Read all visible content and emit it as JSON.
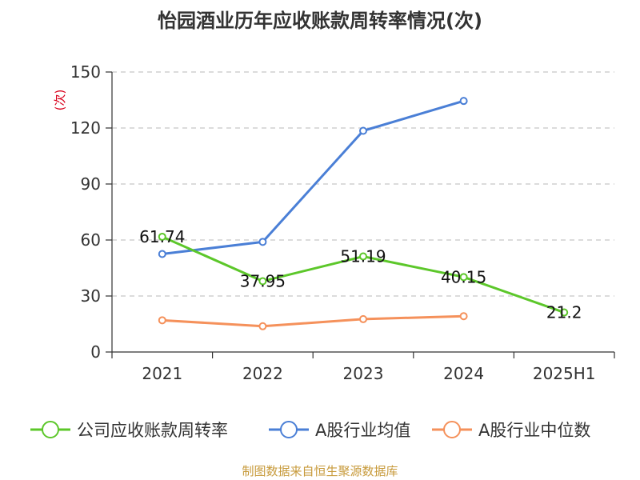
{
  "chart_data": {
    "type": "line",
    "title": "怡园酒业历年应收账款周转率情况(次)",
    "ylabel": "(次)",
    "ylabel_color": "#d9001b",
    "categories": [
      "2021",
      "2022",
      "2023",
      "2024",
      "2025H1"
    ],
    "y_ticks": [
      0,
      30,
      60,
      90,
      120,
      150
    ],
    "ylim": [
      0,
      150
    ],
    "grid": true,
    "legend_position": "bottom",
    "series": [
      {
        "name": "公司应收账款周转率",
        "color": "#5cc72a",
        "values": [
          61.74,
          37.95,
          51.19,
          40.15,
          21.2
        ],
        "labels": [
          "61.74",
          "37.95",
          "51.19",
          "40.15",
          "21.2"
        ]
      },
      {
        "name": "A股行业均值",
        "color": "#4a7fd6",
        "values": [
          52.5,
          59.0,
          118.5,
          134.5,
          null
        ]
      },
      {
        "name": "A股行业中位数",
        "color": "#f5915b",
        "values": [
          17.0,
          13.8,
          17.6,
          19.2,
          null
        ]
      }
    ]
  },
  "footer": {
    "source": "制图数据来自恒生聚源数据库"
  }
}
